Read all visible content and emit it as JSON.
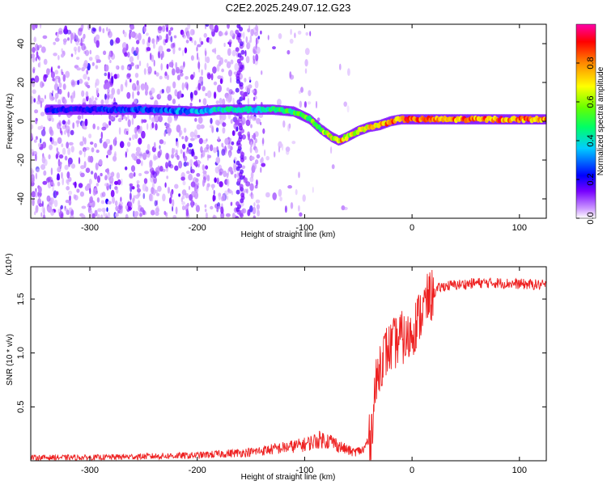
{
  "title": "C2E2.2025.249.07.12.G23",
  "chart_data": [
    {
      "type": "heatmap",
      "name": "spectrogram",
      "xlabel": "Height of straight line (km)",
      "ylabel": "Frequency (Hz)",
      "xlim": [
        -355,
        125
      ],
      "ylim": [
        -50,
        50
      ],
      "xticks": [
        -300,
        -200,
        -100,
        0,
        100
      ],
      "yticks": [
        -40,
        -20,
        0,
        20,
        40
      ],
      "colorbar": {
        "label": "Normalized spectral amplitude",
        "range": [
          0.0,
          1.0
        ],
        "ticks": [
          "0.0",
          "0.2",
          "0.4",
          "0.6",
          "0.8"
        ],
        "tick_values": [
          0.0,
          0.2,
          0.4,
          0.6,
          0.8
        ],
        "colormap": [
          "#ffffff",
          "#cc99ff",
          "#7700ff",
          "#0000ff",
          "#00ccff",
          "#00ff66",
          "#66ff00",
          "#ffff00",
          "#ff8800",
          "#ff0000",
          "#ff00aa"
        ]
      },
      "ridge": {
        "x": [
          -330,
          -300,
          -250,
          -200,
          -180,
          -150,
          -130,
          -110,
          -95,
          -85,
          -75,
          -68,
          -60,
          -50,
          -40,
          -30,
          -20,
          -10,
          0,
          20,
          60,
          100,
          125
        ],
        "freq": [
          6,
          6,
          6,
          5,
          6,
          6,
          6,
          5,
          1,
          -4,
          -8,
          -10,
          -8,
          -5,
          -3,
          -2,
          0,
          1,
          1,
          1,
          1,
          1,
          1
        ],
        "amplitude": [
          0.3,
          0.3,
          0.35,
          0.4,
          0.45,
          0.45,
          0.5,
          0.55,
          0.6,
          0.6,
          0.7,
          0.8,
          0.7,
          0.7,
          0.75,
          0.8,
          0.85,
          0.85,
          0.9,
          0.8,
          0.85,
          0.85,
          0.85
        ]
      },
      "noise_region": [
        -355,
        -140
      ]
    },
    {
      "type": "line",
      "name": "snr",
      "xlabel": "Height of straight line (km)",
      "ylabel": "SNR (10 * v/v)",
      "y_scale_label": "(x10⁴)",
      "xlim": [
        -355,
        125
      ],
      "ylim": [
        0,
        1.8
      ],
      "xticks": [
        -300,
        -200,
        -100,
        0,
        100
      ],
      "yticks": [
        0.5,
        1.0,
        1.5
      ],
      "ytick_labels": [
        "0.5",
        "1.0",
        "1.5"
      ],
      "line_color": "#ee2222",
      "series": [
        {
          "name": "SNR",
          "x": [
            -355,
            -300,
            -250,
            -200,
            -150,
            -120,
            -100,
            -85,
            -75,
            -65,
            -55,
            -45,
            -38,
            -35,
            -30,
            -25,
            -20,
            -15,
            -10,
            -5,
            0,
            5,
            10,
            15,
            20,
            25,
            30,
            40,
            60,
            80,
            100,
            125
          ],
          "y": [
            0.03,
            0.03,
            0.04,
            0.05,
            0.08,
            0.12,
            0.15,
            0.2,
            0.18,
            0.12,
            0.08,
            0.1,
            0.25,
            0.6,
            0.9,
            1.0,
            1.05,
            1.1,
            1.15,
            1.1,
            1.2,
            1.3,
            1.4,
            1.5,
            1.55,
            1.6,
            1.62,
            1.63,
            1.65,
            1.65,
            1.64,
            1.63
          ]
        }
      ]
    }
  ]
}
